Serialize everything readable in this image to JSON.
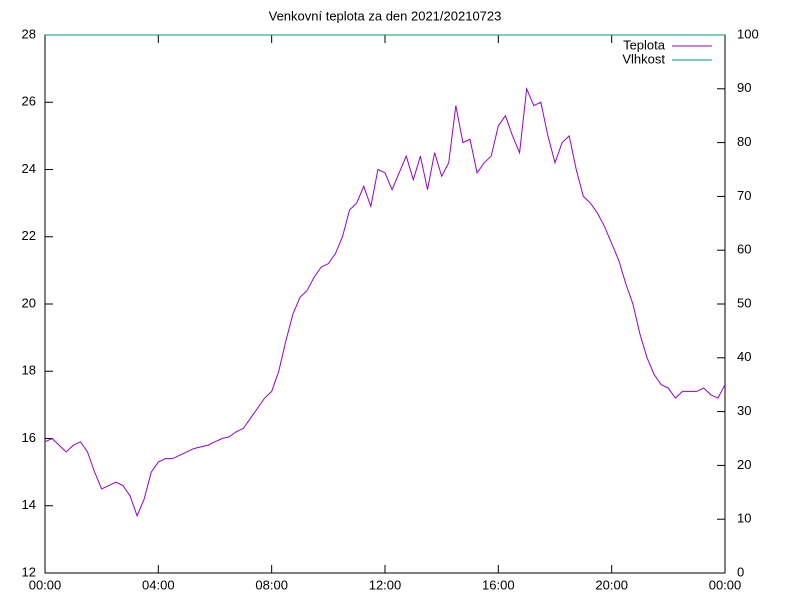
{
  "chart_data": {
    "type": "line",
    "title": "Venkovní teplota za den 2021/20210723",
    "x": [
      0,
      0.25,
      0.5,
      0.75,
      1,
      1.25,
      1.5,
      1.75,
      2,
      2.25,
      2.5,
      2.75,
      3,
      3.25,
      3.5,
      3.75,
      4,
      4.25,
      4.5,
      4.75,
      5,
      5.25,
      5.5,
      5.75,
      6,
      6.25,
      6.5,
      6.75,
      7,
      7.25,
      7.5,
      7.75,
      8,
      8.25,
      8.5,
      8.75,
      9,
      9.25,
      9.5,
      9.75,
      10,
      10.25,
      10.5,
      10.75,
      11,
      11.25,
      11.5,
      11.75,
      12,
      12.25,
      12.5,
      12.75,
      13,
      13.25,
      13.5,
      13.75,
      14,
      14.25,
      14.5,
      14.75,
      15,
      15.25,
      15.5,
      15.75,
      16,
      16.25,
      16.5,
      16.75,
      17,
      17.25,
      17.5,
      17.75,
      18,
      18.25,
      18.5,
      18.75,
      19,
      19.25,
      19.5,
      19.75,
      20,
      20.25,
      20.5,
      20.75,
      21,
      21.25,
      21.5,
      21.75,
      22,
      22.25,
      22.5,
      22.75,
      23,
      23.25,
      23.5,
      23.75,
      24
    ],
    "series": [
      {
        "name": "Teplota",
        "color": "#9400d3",
        "axis": "y",
        "values": [
          15.9,
          16.0,
          15.8,
          15.6,
          15.8,
          15.9,
          15.6,
          15.0,
          14.5,
          14.6,
          14.7,
          14.6,
          14.3,
          13.7,
          14.2,
          15.0,
          15.3,
          15.4,
          15.4,
          15.5,
          15.6,
          15.7,
          15.75,
          15.8,
          15.9,
          16.0,
          16.05,
          16.2,
          16.3,
          16.6,
          16.9,
          17.2,
          17.4,
          18.0,
          18.9,
          19.7,
          20.2,
          20.4,
          20.8,
          21.1,
          21.2,
          21.5,
          22.0,
          22.8,
          23.0,
          23.5,
          22.9,
          24.0,
          23.9,
          23.4,
          23.9,
          24.4,
          23.7,
          24.4,
          23.4,
          24.5,
          23.8,
          24.2,
          25.9,
          24.8,
          24.9,
          23.9,
          24.2,
          24.4,
          25.3,
          25.6,
          25.0,
          24.5,
          26.4,
          25.9,
          26.0,
          25.0,
          24.2,
          24.8,
          25.0,
          24.0,
          23.2,
          23.0,
          22.7,
          22.3,
          21.8,
          21.3,
          20.6,
          20.0,
          19.1,
          18.4,
          17.9,
          17.6,
          17.5,
          17.2,
          17.4,
          17.4,
          17.4,
          17.5,
          17.3,
          17.2,
          17.6
        ]
      },
      {
        "name": "Vlhkost",
        "color": "#009e73",
        "axis": "y2",
        "values": [
          100,
          100,
          100,
          100,
          100,
          100,
          100,
          100,
          100,
          100,
          100,
          100,
          100,
          100,
          100,
          100,
          100,
          100,
          100,
          100,
          100,
          100,
          100,
          100,
          100,
          100,
          100,
          100,
          100,
          100,
          100,
          100,
          100,
          100,
          100,
          100,
          100,
          100,
          100,
          100,
          100,
          100,
          100,
          100,
          100,
          100,
          100,
          100,
          100,
          100,
          100,
          100,
          100,
          100,
          100,
          100,
          100,
          100,
          100,
          100,
          100,
          100,
          100,
          100,
          100,
          100,
          100,
          100,
          100,
          100,
          100,
          100,
          100,
          100,
          100,
          100,
          100,
          100,
          100,
          100,
          100,
          100,
          100,
          100,
          100,
          100,
          100,
          100,
          100,
          100,
          100,
          100,
          100,
          100,
          100,
          100,
          100
        ]
      }
    ],
    "xlim": [
      0,
      24
    ],
    "xticks": [
      {
        "value": 0,
        "label": "00:00"
      },
      {
        "value": 4,
        "label": "04:00"
      },
      {
        "value": 8,
        "label": "08:00"
      },
      {
        "value": 12,
        "label": "12:00"
      },
      {
        "value": 16,
        "label": "16:00"
      },
      {
        "value": 20,
        "label": "20:00"
      },
      {
        "value": 24,
        "label": "00:00"
      }
    ],
    "ylim": [
      12,
      28
    ],
    "yticks": [
      12,
      14,
      16,
      18,
      20,
      22,
      24,
      26,
      28
    ],
    "y2lim": [
      0,
      100
    ],
    "y2ticks": [
      0,
      10,
      20,
      30,
      40,
      50,
      60,
      70,
      80,
      90,
      100
    ],
    "legend": "top-right"
  }
}
